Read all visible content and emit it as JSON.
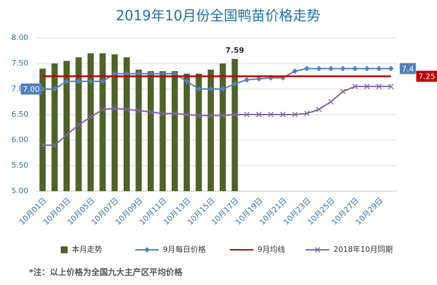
{
  "chart_data": {
    "type": "bar",
    "title": "2019年10月份全国鸭苗价格走势",
    "note": "*注：以上价格为全国九大主产区平均价格",
    "categories": [
      "10月01日",
      null,
      "10月03日",
      null,
      "10月05日",
      null,
      "10月07日",
      null,
      "10月09日",
      null,
      "10月11日",
      null,
      "10月13日",
      null,
      "10月15日",
      null,
      "10月17日",
      null,
      "10月19日",
      null,
      "10月21日",
      null,
      "10月23日",
      null,
      "10月25日",
      null,
      "10月27日",
      null,
      "10月29日",
      null
    ],
    "ylim": [
      5,
      8
    ],
    "yticks": [
      {
        "value": 5,
        "label": "5.00"
      },
      {
        "value": 5.5,
        "label": "5.50"
      },
      {
        "value": 6,
        "label": "6.00"
      },
      {
        "value": 6.5,
        "label": "6.50"
      },
      {
        "value": 7,
        "label": "7.00"
      },
      {
        "value": 7.5,
        "label": "7.50"
      },
      {
        "value": 8,
        "label": "8.00"
      }
    ],
    "grid": true,
    "legend": "bottom",
    "series": [
      {
        "name": "本月走势",
        "type": "bar",
        "color": "#4f6228",
        "values": [
          7.4,
          7.5,
          7.55,
          7.62,
          7.7,
          7.7,
          7.68,
          7.62,
          7.38,
          7.35,
          7.35,
          7.35,
          7.3,
          7.3,
          7.38,
          7.5,
          7.59,
          null,
          null,
          null,
          null,
          null,
          null,
          null,
          null,
          null,
          null,
          null,
          null,
          null
        ],
        "value_labels": [
          null,
          null,
          null,
          null,
          null,
          null,
          null,
          null,
          null,
          null,
          null,
          null,
          null,
          null,
          null,
          null,
          "7.59",
          null,
          null,
          null,
          null,
          null,
          null,
          null,
          null,
          null,
          null,
          null,
          null,
          null
        ]
      },
      {
        "name": "9月每日价格",
        "type": "line",
        "marker": "diamond",
        "color": "#4f81bd",
        "values": [
          7.0,
          7.0,
          7.15,
          7.15,
          7.15,
          7.15,
          7.3,
          7.3,
          7.3,
          7.3,
          7.3,
          7.3,
          7.15,
          7.0,
          7.0,
          7.0,
          7.1,
          7.18,
          7.2,
          7.22,
          7.22,
          7.35,
          7.4,
          7.4,
          7.4,
          7.4,
          7.4,
          7.4,
          7.4,
          7.4
        ],
        "value_labels": [
          "7.00",
          null,
          null,
          null,
          null,
          null,
          null,
          null,
          null,
          null,
          null,
          null,
          null,
          null,
          null,
          null,
          null,
          null,
          null,
          null,
          null,
          null,
          null,
          null,
          null,
          null,
          null,
          null,
          null,
          "7.4"
        ]
      },
      {
        "name": "9月均线",
        "type": "line",
        "marker": "none",
        "color": "#c00000",
        "values": [
          7.25,
          7.25,
          7.25,
          7.25,
          7.25,
          7.25,
          7.25,
          7.25,
          7.25,
          7.25,
          7.25,
          7.25,
          7.25,
          7.25,
          7.25,
          7.25,
          7.25,
          7.25,
          7.25,
          7.25,
          7.25,
          7.25,
          7.25,
          7.25,
          7.25,
          7.25,
          7.25,
          7.25,
          7.25,
          7.25
        ],
        "value_labels": [
          null,
          null,
          null,
          null,
          null,
          null,
          null,
          null,
          null,
          null,
          null,
          null,
          null,
          null,
          null,
          null,
          null,
          null,
          null,
          null,
          null,
          null,
          null,
          null,
          null,
          null,
          null,
          null,
          null,
          "7.25"
        ]
      },
      {
        "name": "2018年10月同期",
        "type": "line",
        "marker": "x",
        "color": "#8064a2",
        "values": [
          5.9,
          5.9,
          6.1,
          6.3,
          6.45,
          6.6,
          6.62,
          6.6,
          6.58,
          6.55,
          6.52,
          6.52,
          6.5,
          6.48,
          6.48,
          6.48,
          6.5,
          6.5,
          6.5,
          6.5,
          6.5,
          6.5,
          6.52,
          6.6,
          6.75,
          6.95,
          7.05,
          7.05,
          7.05,
          7.05
        ]
      }
    ]
  }
}
